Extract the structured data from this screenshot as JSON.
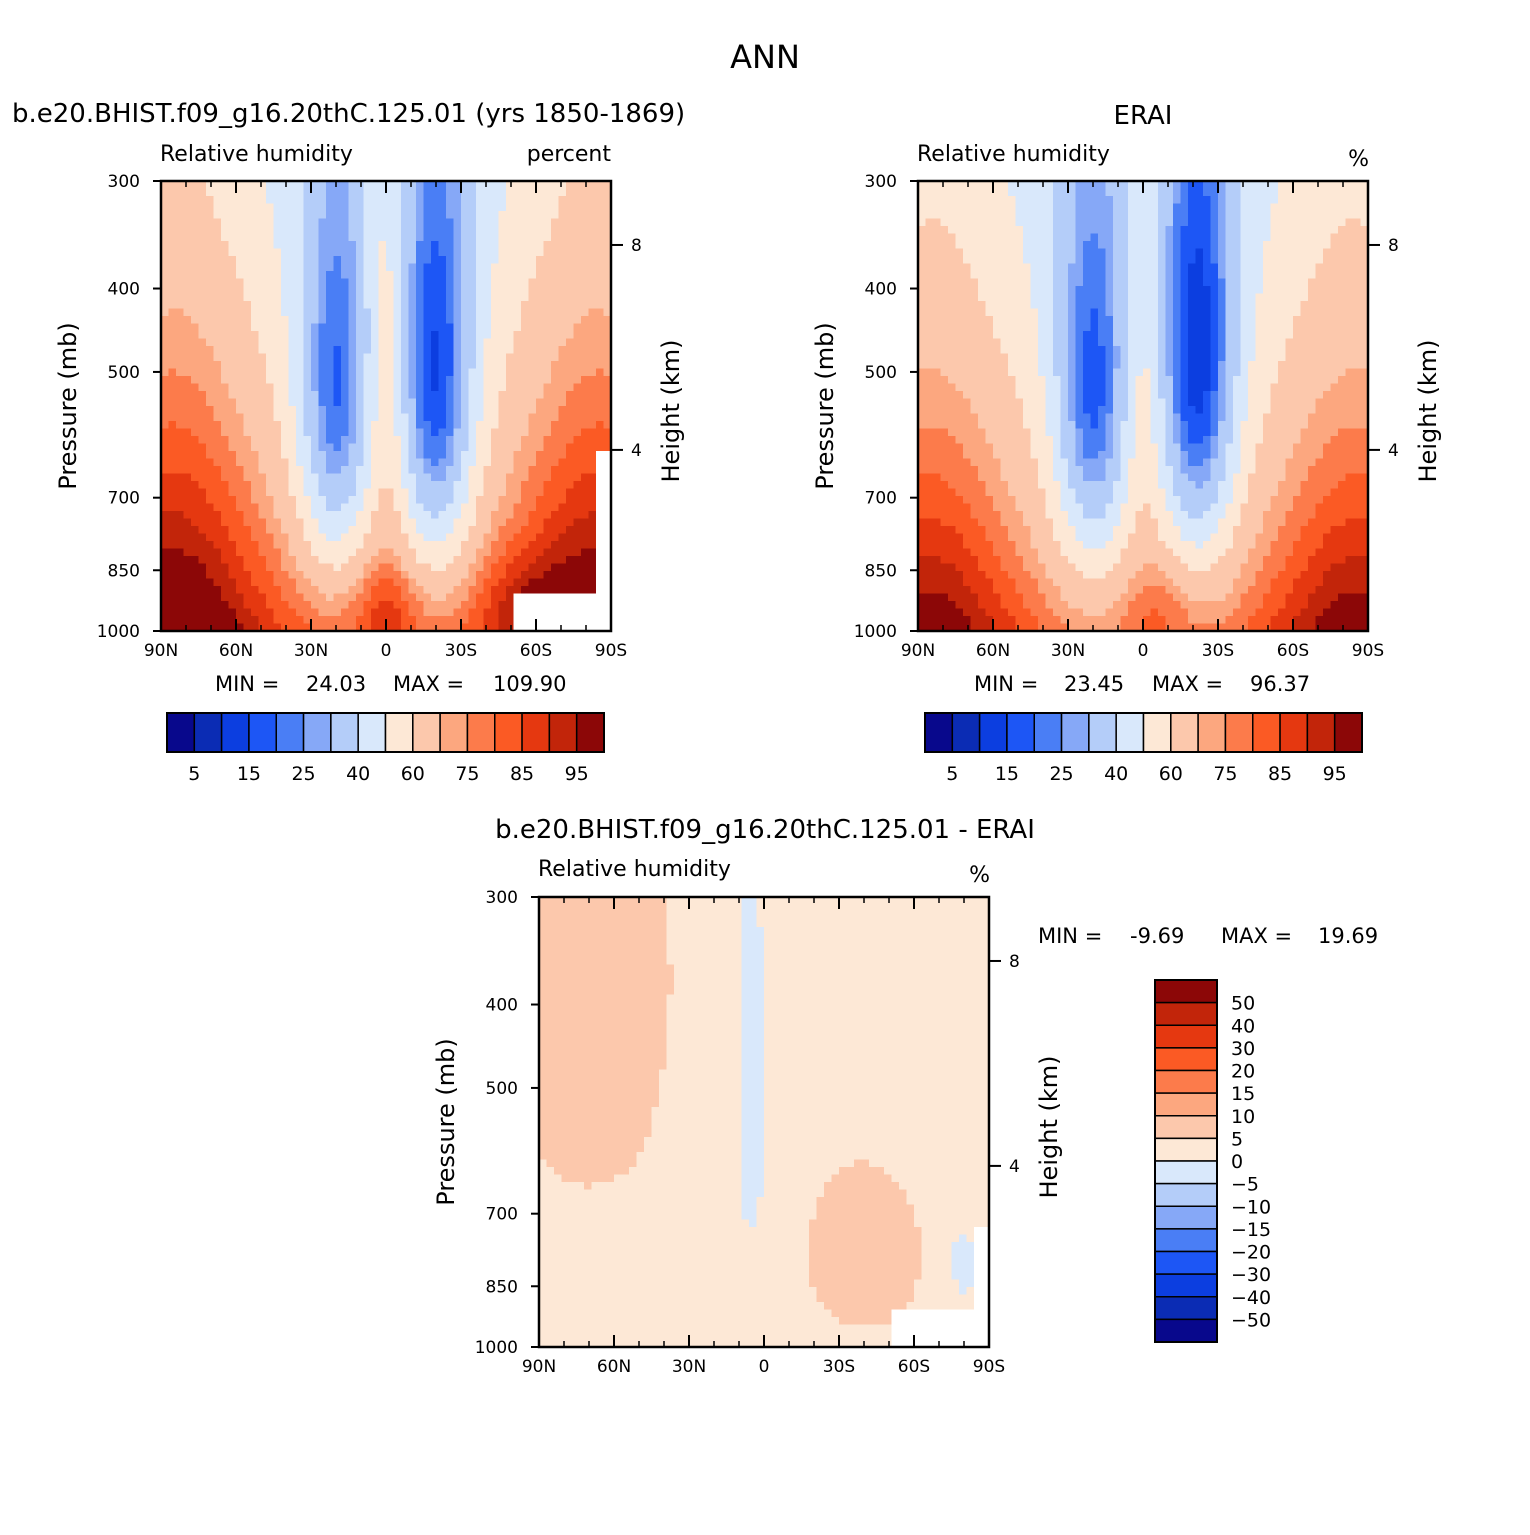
{
  "figure": {
    "season": "ANN"
  },
  "palette": [
    "#08088c",
    "#0b2cb4",
    "#0c3ee0",
    "#1d56f5",
    "#4a7ef5",
    "#86a8f7",
    "#b4cdf9",
    "#d9e8fb",
    "#fde8d6",
    "#fcc8ac",
    "#fca77f",
    "#fc7b4b",
    "#fb5a24",
    "#e53810",
    "#c2250a",
    "#8c0707"
  ],
  "diff_palette": [
    "#08088c",
    "#0b2cb4",
    "#0c3ee0",
    "#1d56f5",
    "#4a7ef5",
    "#86a8f7",
    "#b4cdf9",
    "#d9e8fb",
    "#fde8d6",
    "#fcc8ac",
    "#fca77f",
    "#fc7b4b",
    "#fb5a24",
    "#e53810",
    "#c2250a",
    "#8c0707"
  ],
  "chart_data": [
    {
      "type": "heatmap",
      "case_title": "b.e20.BHIST.f09_g16.20thC.125.01 (yrs 1850-1869)",
      "variable": "Relative humidity",
      "units": "percent",
      "xlabel": "",
      "ylabel": "Pressure (mb)",
      "ylabel_right": "Height (km)",
      "x_ticks": [
        "90N",
        "60N",
        "30N",
        "0",
        "30S",
        "60S",
        "90S"
      ],
      "x_range_deg": [
        90,
        -90
      ],
      "y_ticks": [
        300,
        400,
        500,
        700,
        850,
        1000
      ],
      "y_range": [
        300,
        1000
      ],
      "y_scale": "log",
      "height_ticks": [
        8,
        4
      ],
      "min_label": "MIN =",
      "min": "24.03",
      "max_label": "MAX =",
      "max": "109.90",
      "colorbar_labels": [
        "5",
        "15",
        "25",
        "40",
        "60",
        "75",
        "85",
        "95"
      ],
      "contour_levels": [
        5,
        10,
        15,
        20,
        25,
        30,
        40,
        50,
        60,
        70,
        75,
        80,
        85,
        90,
        95
      ],
      "field_description": "model zonal-mean relative humidity, values low (~25-40) in subtropical mid troposphere, high (>85) near surface and high latitudes"
    },
    {
      "type": "heatmap",
      "case_title": "ERAI",
      "variable": "Relative humidity",
      "units": "%",
      "ylabel": "Pressure (mb)",
      "ylabel_right": "Height (km)",
      "x_ticks": [
        "90N",
        "60N",
        "30N",
        "0",
        "30S",
        "60S",
        "90S"
      ],
      "y_ticks": [
        300,
        400,
        500,
        700,
        850,
        1000
      ],
      "height_ticks": [
        8,
        4
      ],
      "min_label": "MIN =",
      "min": "23.45",
      "max_label": "MAX =",
      "max": "96.37",
      "colorbar_labels": [
        "5",
        "15",
        "25",
        "40",
        "60",
        "75",
        "85",
        "95"
      ],
      "contour_levels": [
        5,
        10,
        15,
        20,
        25,
        30,
        40,
        50,
        60,
        70,
        75,
        80,
        85,
        90,
        95
      ]
    },
    {
      "type": "heatmap",
      "case_title": "b.e20.BHIST.f09_g16.20thC.125.01 - ERAI",
      "variable": "Relative humidity",
      "units": "%",
      "ylabel": "Pressure (mb)",
      "ylabel_right": "Height (km)",
      "x_ticks": [
        "90N",
        "60N",
        "30N",
        "0",
        "30S",
        "60S",
        "90S"
      ],
      "y_ticks": [
        300,
        400,
        500,
        700,
        850,
        1000
      ],
      "height_ticks": [
        8,
        4
      ],
      "min_label": "MIN =",
      "min": "-9.69",
      "max_label": "MAX =",
      "max": "19.69",
      "colorbar_labels": [
        "50",
        "40",
        "30",
        "20",
        "15",
        "10",
        "5",
        "0",
        "-5",
        "-10",
        "-15",
        "-20",
        "-30",
        "-40",
        "-50"
      ],
      "contour_levels": [
        -50,
        -40,
        -30,
        -20,
        -15,
        -10,
        -5,
        0,
        5,
        10,
        15,
        20,
        30,
        40,
        50
      ]
    }
  ]
}
